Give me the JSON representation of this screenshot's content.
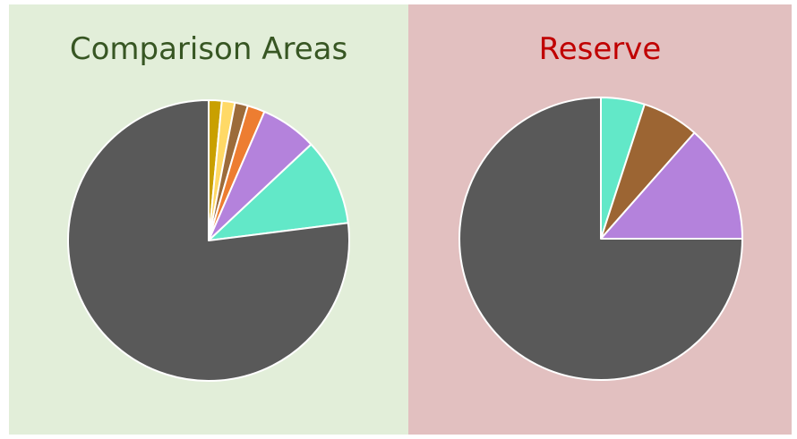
{
  "chart_data": [
    {
      "type": "pie",
      "title": "Comparison Areas",
      "title_color": "#375623",
      "panel_color": "#e2eed9",
      "start": "top, clockwise",
      "slices": [
        {
          "value": 1.5,
          "color": "#c9a000"
        },
        {
          "value": 1.5,
          "color": "#ffd966"
        },
        {
          "value": 1.5,
          "color": "#9c6b3a"
        },
        {
          "value": 2,
          "color": "#ed7d31"
        },
        {
          "value": 6.5,
          "color": "#b482dc"
        },
        {
          "value": 10,
          "color": "#62e8c8"
        },
        {
          "value": 77,
          "color": "#595959"
        }
      ]
    },
    {
      "type": "pie",
      "title": "Reserve",
      "title_color": "#c00000",
      "panel_color": "#e2c0c0",
      "start": "top, clockwise",
      "slices": [
        {
          "value": 5,
          "color": "#62e8c8"
        },
        {
          "value": 6.5,
          "color": "#9c6533"
        },
        {
          "value": 13.5,
          "color": "#b482dc"
        },
        {
          "value": 75,
          "color": "#595959"
        }
      ]
    }
  ]
}
